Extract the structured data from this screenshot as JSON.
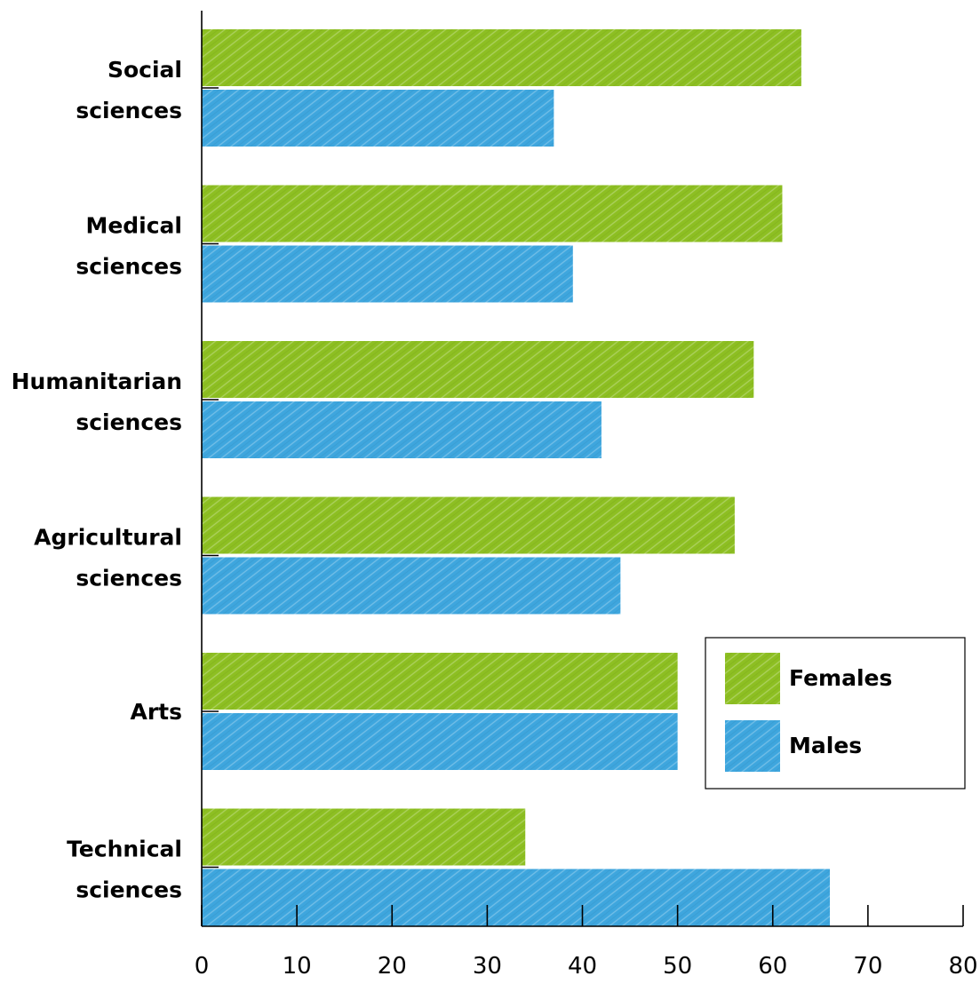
{
  "chart_data": {
    "type": "bar",
    "orientation": "horizontal",
    "categories": [
      [
        "Social",
        "sciences"
      ],
      [
        "Medical",
        "sciences"
      ],
      [
        "Humanitarian",
        "sciences"
      ],
      [
        "Agricultural",
        "sciences"
      ],
      [
        "Arts"
      ],
      [
        "Technical",
        "sciences"
      ]
    ],
    "series": [
      {
        "name": "Females",
        "color": "#8dbf22",
        "values": [
          63,
          61,
          58,
          56,
          50,
          34
        ]
      },
      {
        "name": "Males",
        "color": "#3ea6de",
        "values": [
          37,
          39,
          42,
          44,
          50,
          66
        ]
      }
    ],
    "xlim": [
      0,
      80
    ],
    "xticks": [
      0,
      10,
      20,
      30,
      40,
      50,
      60,
      70,
      80
    ],
    "grid": false,
    "legend_position": "right",
    "title": "",
    "xlabel": "",
    "ylabel": ""
  }
}
